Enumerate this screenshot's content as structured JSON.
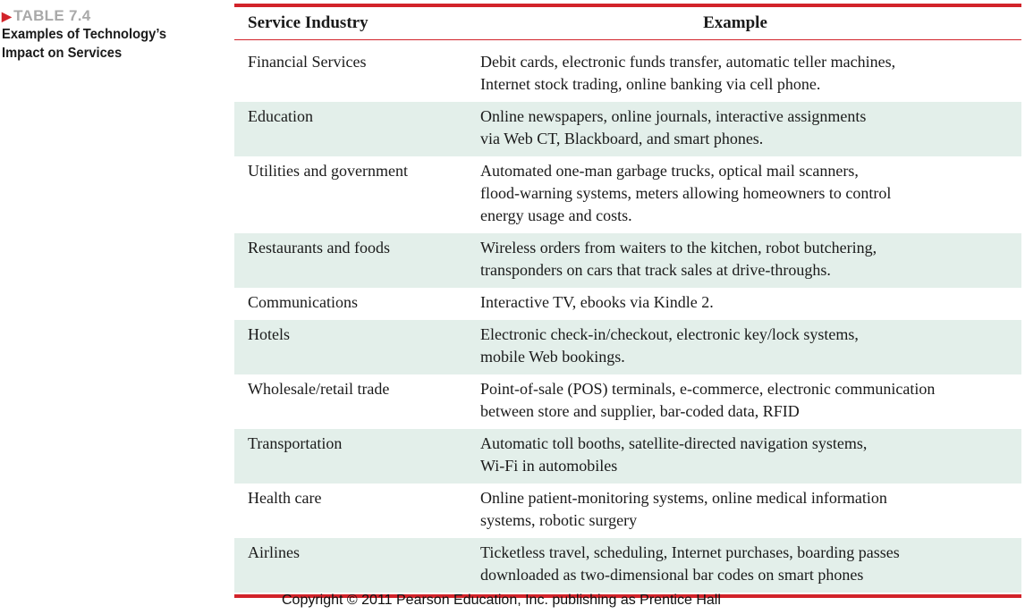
{
  "caption": {
    "tag": "TABLE 7.4",
    "title_line1": "Examples of Technology’s",
    "title_line2": "Impact on Services"
  },
  "table": {
    "headers": [
      "Service Industry",
      "Example"
    ],
    "rows": [
      {
        "industry": "Financial Services",
        "example": "Debit cards, electronic funds transfer, automatic teller machines,\nInternet stock trading, online banking via cell phone."
      },
      {
        "industry": "Education",
        "example": "Online newspapers, online journals, interactive assignments\nvia Web CT, Blackboard, and smart phones."
      },
      {
        "industry": "Utilities and government",
        "example": "Automated one-man garbage trucks, optical mail scanners,\nflood-warning systems, meters allowing homeowners to control\nenergy usage and costs."
      },
      {
        "industry": "Restaurants and foods",
        "example": "Wireless orders from waiters to the kitchen, robot butchering,\ntransponders on cars that track sales at drive-throughs."
      },
      {
        "industry": "Communications",
        "example": "Interactive TV, ebooks via Kindle 2."
      },
      {
        "industry": "Hotels",
        "example": "Electronic check-in/checkout, electronic key/lock systems,\nmobile Web bookings."
      },
      {
        "industry": "Wholesale/retail trade",
        "example": "Point-of-sale (POS) terminals, e-commerce, electronic communication\nbetween store and supplier, bar-coded data, RFID"
      },
      {
        "industry": "Transportation",
        "example": "Automatic toll booths, satellite-directed navigation systems,\nWi-Fi in automobiles"
      },
      {
        "industry": "Health care",
        "example": "Online patient-monitoring systems, online medical information\nsystems, robotic surgery"
      },
      {
        "industry": "Airlines",
        "example": "Ticketless travel, scheduling, Internet purchases, boarding passes\ndownloaded as two-dimensional bar codes on smart phones"
      }
    ]
  },
  "footer": {
    "copyright": "Copyright © 2011 Pearson Education, Inc. publishing as Prentice Hall"
  },
  "colors": {
    "accent_red": "#d2232a",
    "row_shade": "#e3efea",
    "tag_gray": "#a9a9a9"
  }
}
